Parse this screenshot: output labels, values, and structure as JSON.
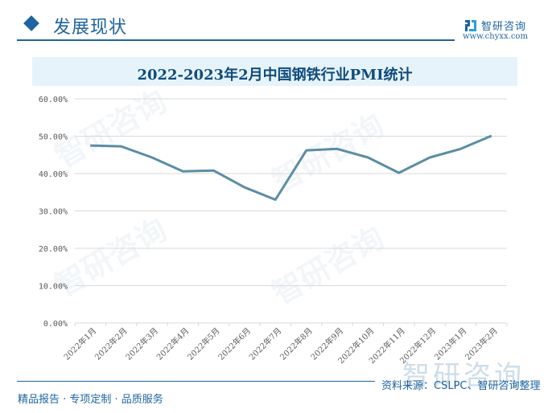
{
  "header": {
    "title": "发展现状",
    "brand_name": "智研咨询",
    "brand_url": "www.chyxx.com"
  },
  "colors": {
    "accent": "#1e64a0",
    "line": "#5b8ea4",
    "title_bar_bg": "#e6f3fb",
    "grid": "#d9d9d9"
  },
  "chart_data": {
    "type": "line",
    "title": "2022-2023年2月中国钢铁行业PMI统计",
    "xlabel": "",
    "ylabel": "",
    "ylim": [
      0,
      60
    ],
    "y_ticks": [
      "0.00%",
      "10.00%",
      "20.00%",
      "30.00%",
      "40.00%",
      "50.00%",
      "60.00%"
    ],
    "grid": true,
    "legend": "none",
    "categories": [
      "2022年1月",
      "2022年2月",
      "2022年3月",
      "2022年4月",
      "2022年5月",
      "2022年6月",
      "2022年7月",
      "2022年8月",
      "2022年9月",
      "2022年10月",
      "2022年11月",
      "2022年12月",
      "2023年1月",
      "2023年2月"
    ],
    "series": [
      {
        "name": "钢铁行业PMI",
        "values": [
          47.5,
          47.3,
          44.3,
          40.6,
          40.8,
          36.3,
          33.0,
          46.2,
          46.6,
          44.3,
          40.2,
          44.3,
          46.6,
          50.1
        ]
      }
    ]
  },
  "footer": {
    "tagline": "精品报告 · 专项定制 · 品质服务",
    "source": "资料来源：CSLPC、智研咨询整理",
    "watermark_text": "智研咨询"
  }
}
